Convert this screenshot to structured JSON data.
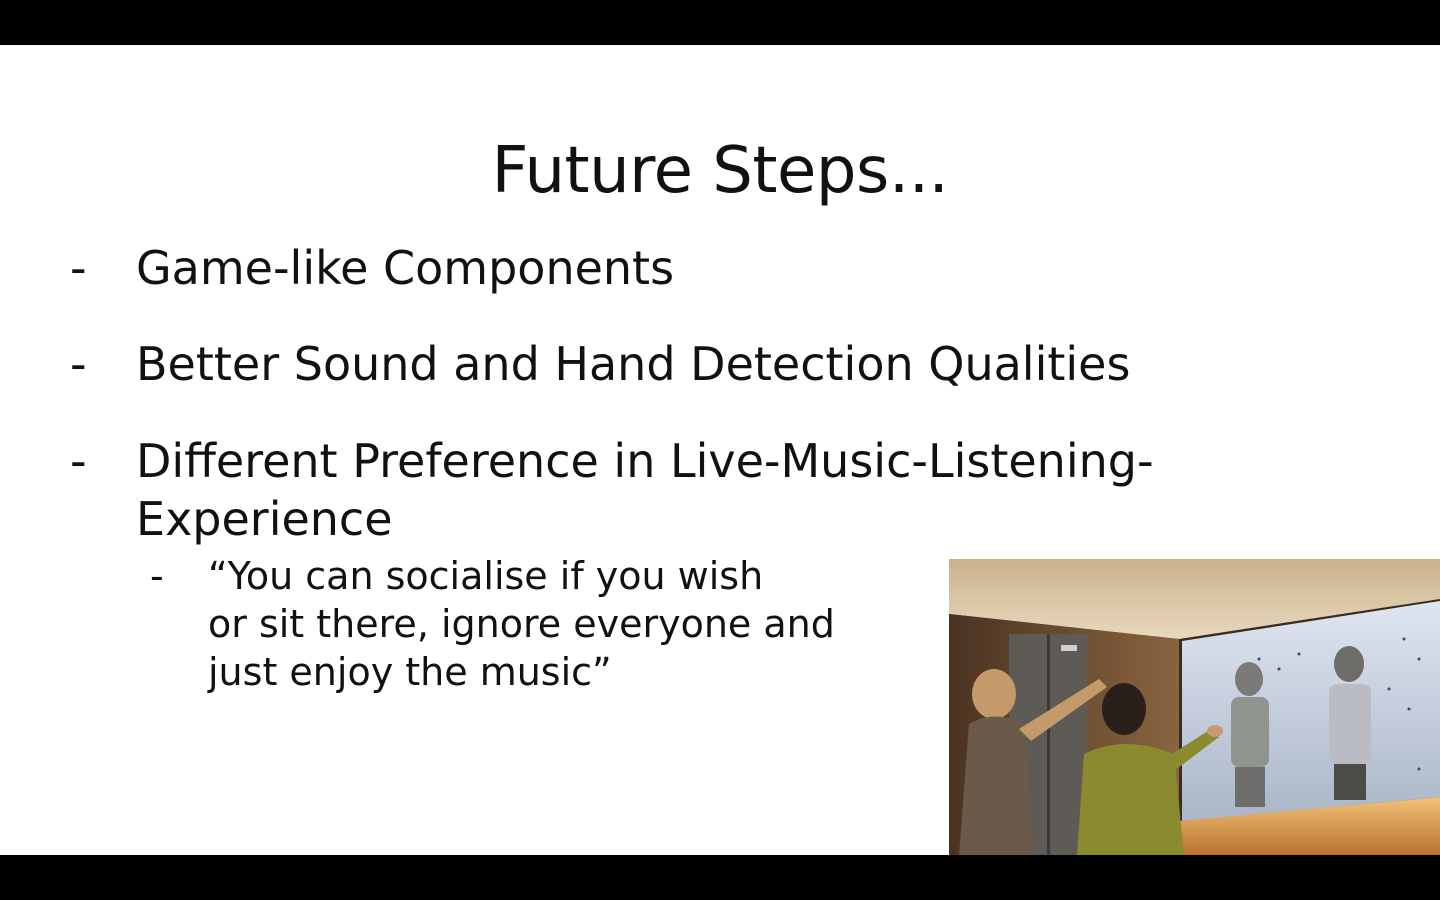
{
  "slide": {
    "title": "Future Steps...",
    "bullets": [
      {
        "marker": "-",
        "text": "Game-like Components"
      },
      {
        "marker": "-",
        "text": "Better Sound and Hand Detection Qualities"
      },
      {
        "marker": "-",
        "text": "Different Preference in Live-Music-Listening-Experience"
      }
    ],
    "sub_bullet": {
      "marker": "-",
      "text": "“You can socialise if you wish\nor sit there, ignore everyone and\njust enjoy the music”"
    },
    "photo": {
      "icon": "interactive-projection-photo",
      "colors": {
        "ceiling": "#d9c7a8",
        "wall_left": "#6b4a30",
        "screen": "#c9d2e4",
        "floor_glow": "#e7a85a"
      }
    }
  }
}
